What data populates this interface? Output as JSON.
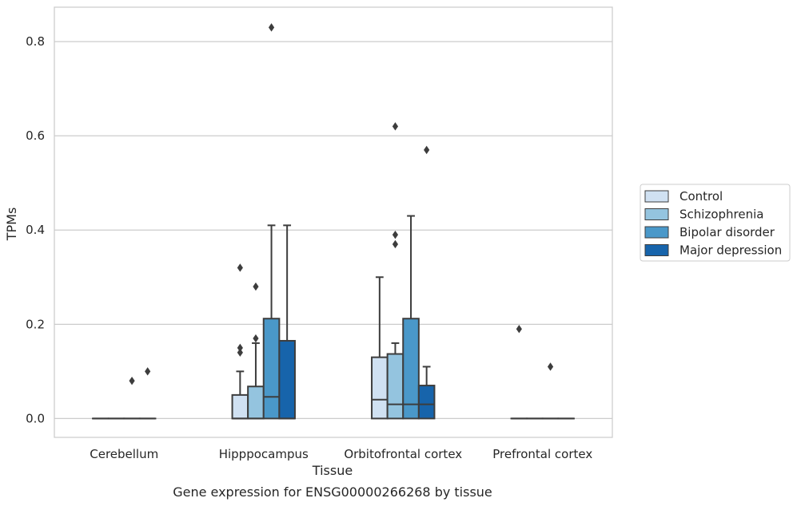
{
  "chart_data": {
    "type": "box",
    "title": "",
    "caption": "Gene expression for ENSG00000266268 by tissue",
    "xlabel": "Tissue",
    "ylabel": "TPMs",
    "ylim": [
      -0.04,
      0.873
    ],
    "yticks": [
      0.0,
      0.2,
      0.4,
      0.6,
      0.8
    ],
    "ytick_labels": [
      "0.0",
      "0.2",
      "0.4",
      "0.6",
      "0.8"
    ],
    "grid": "horizontal",
    "legend_position": "right",
    "categories": [
      "Cerebellum",
      "Hipppocampus",
      "Orbitofrontal cortex",
      "Prefrontal cortex"
    ],
    "series": [
      {
        "name": "Control",
        "color": "#d0e1f2",
        "boxes": [
          {
            "q1": 0.0,
            "median": 0.0,
            "q3": 0.0,
            "whislo": 0.0,
            "whishi": 0.0,
            "fliers": []
          },
          {
            "q1": 0.0,
            "median": 0.0,
            "q3": 0.05,
            "whislo": 0.0,
            "whishi": 0.1,
            "fliers": [
              0.14,
              0.15,
              0.32
            ]
          },
          {
            "q1": 0.0,
            "median": 0.04,
            "q3": 0.13,
            "whislo": 0.0,
            "whishi": 0.3,
            "fliers": []
          },
          {
            "q1": 0.0,
            "median": 0.0,
            "q3": 0.0,
            "whislo": 0.0,
            "whishi": 0.0,
            "fliers": [
              0.19
            ]
          }
        ]
      },
      {
        "name": "Schizophrenia",
        "color": "#94c4df",
        "boxes": [
          {
            "q1": 0.0,
            "median": 0.0,
            "q3": 0.0,
            "whislo": 0.0,
            "whishi": 0.0,
            "fliers": []
          },
          {
            "q1": 0.0,
            "median": 0.0,
            "q3": 0.068,
            "whislo": 0.0,
            "whishi": 0.16,
            "fliers": [
              0.17,
              0.28
            ]
          },
          {
            "q1": 0.0,
            "median": 0.03,
            "q3": 0.137,
            "whislo": 0.0,
            "whishi": 0.16,
            "fliers": [
              0.37,
              0.39,
              0.62
            ]
          },
          {
            "q1": 0.0,
            "median": 0.0,
            "q3": 0.0,
            "whislo": 0.0,
            "whishi": 0.0,
            "fliers": []
          }
        ]
      },
      {
        "name": "Bipolar disorder",
        "color": "#4a98c9",
        "boxes": [
          {
            "q1": 0.0,
            "median": 0.0,
            "q3": 0.0,
            "whislo": 0.0,
            "whishi": 0.0,
            "fliers": [
              0.08
            ]
          },
          {
            "q1": 0.0,
            "median": 0.046,
            "q3": 0.212,
            "whislo": 0.0,
            "whishi": 0.41,
            "fliers": [
              0.83
            ]
          },
          {
            "q1": 0.0,
            "median": 0.03,
            "q3": 0.212,
            "whislo": 0.0,
            "whishi": 0.43,
            "fliers": []
          },
          {
            "q1": 0.0,
            "median": 0.0,
            "q3": 0.0,
            "whislo": 0.0,
            "whishi": 0.0,
            "fliers": [
              0.11
            ]
          }
        ]
      },
      {
        "name": "Major depression",
        "color": "#1764ab",
        "boxes": [
          {
            "q1": 0.0,
            "median": 0.0,
            "q3": 0.0,
            "whislo": 0.0,
            "whishi": 0.0,
            "fliers": [
              0.1
            ]
          },
          {
            "q1": 0.0,
            "median": 0.0,
            "q3": 0.165,
            "whislo": 0.0,
            "whishi": 0.41,
            "fliers": []
          },
          {
            "q1": 0.0,
            "median": 0.03,
            "q3": 0.07,
            "whislo": 0.0,
            "whishi": 0.11,
            "fliers": [
              0.57
            ]
          },
          {
            "q1": 0.0,
            "median": 0.0,
            "q3": 0.0,
            "whislo": 0.0,
            "whishi": 0.0,
            "fliers": []
          }
        ]
      }
    ]
  }
}
